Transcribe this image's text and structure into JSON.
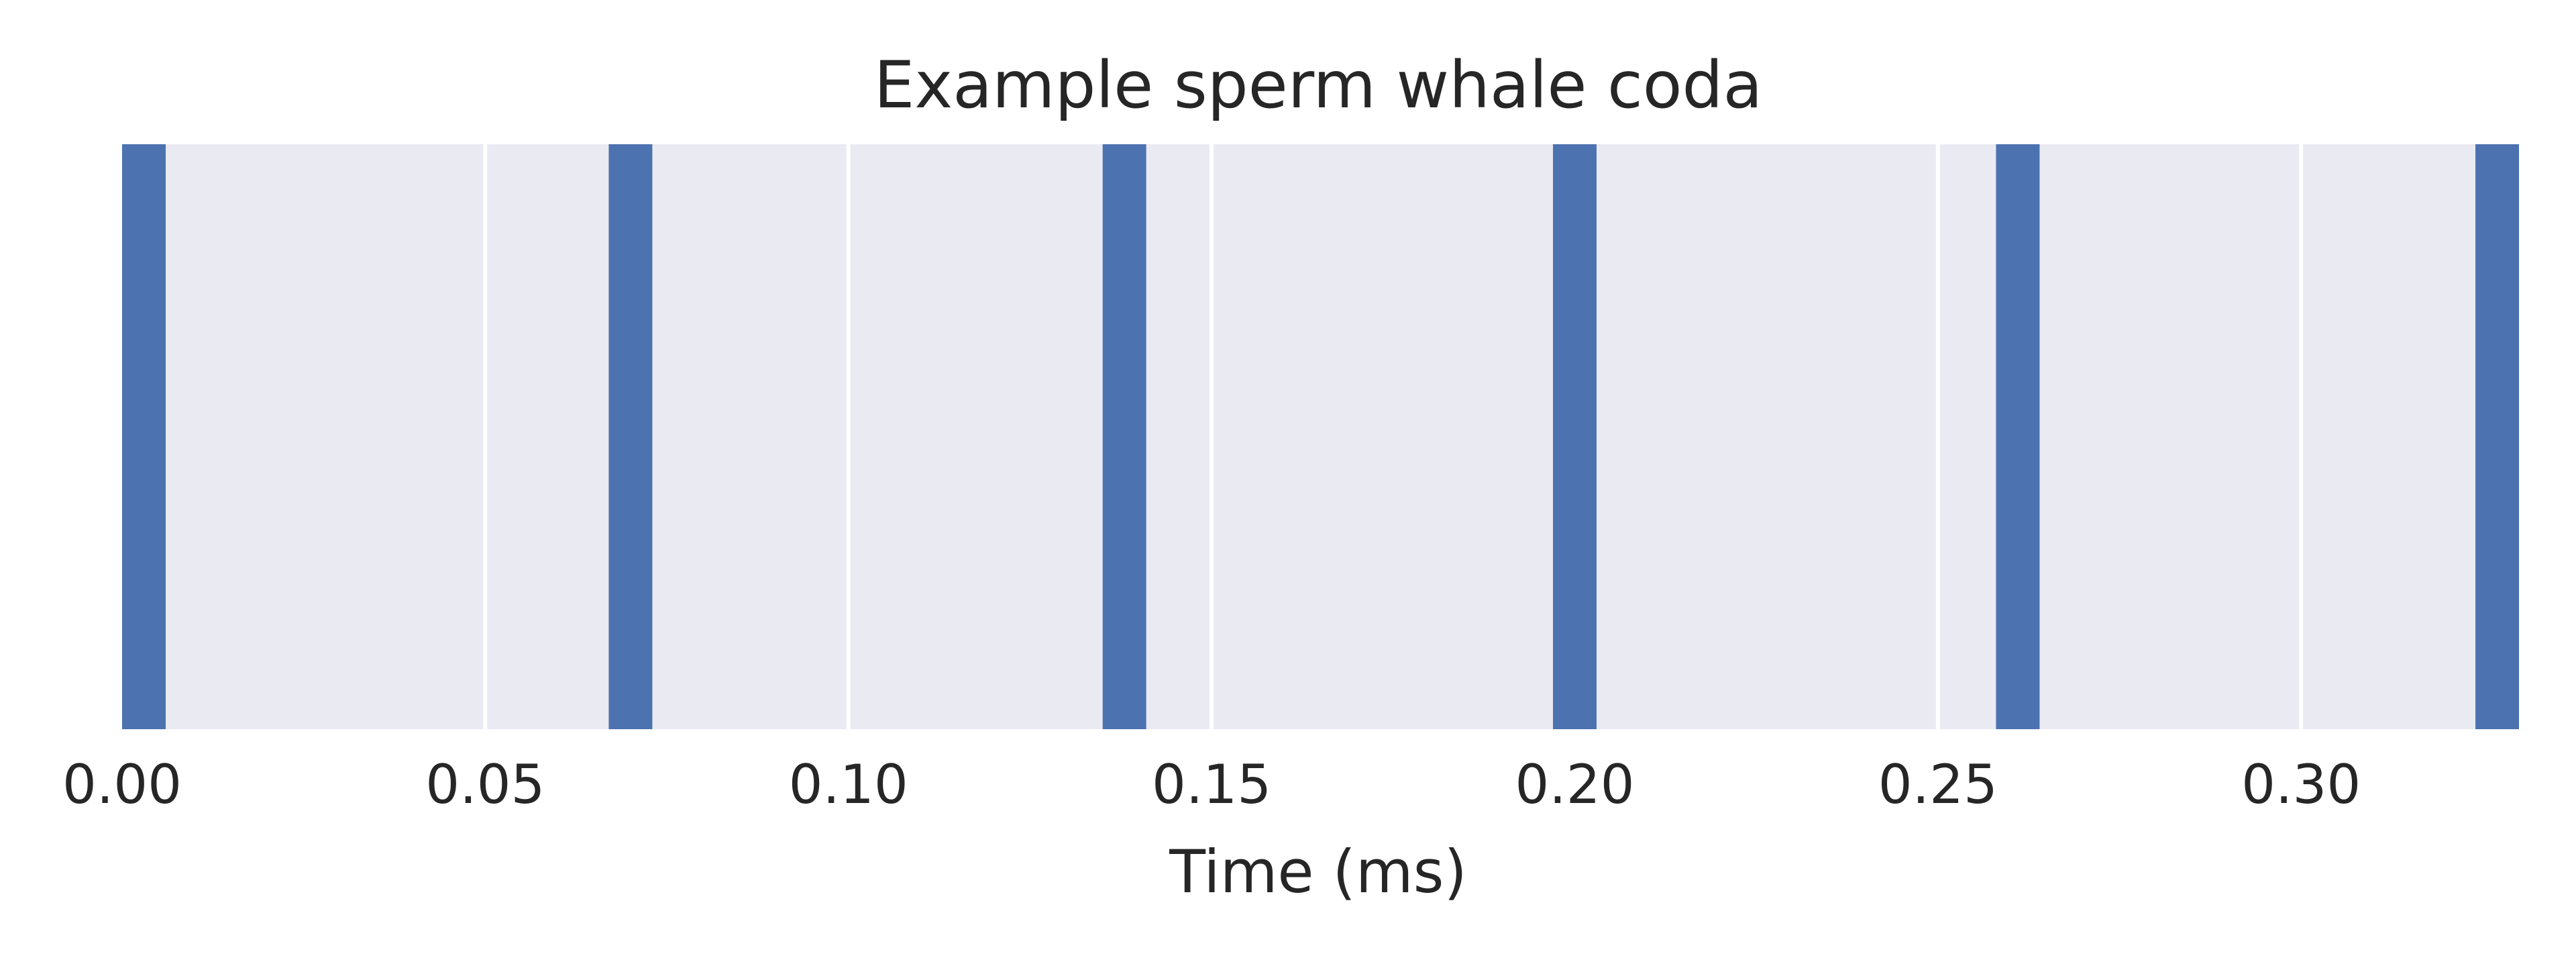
{
  "chart_data": {
    "type": "bar",
    "title": "Example sperm whale coda",
    "xlabel": "Time (ms)",
    "ylabel": "",
    "xlim": [
      0.0,
      0.33
    ],
    "x_ticks": [
      "0.00",
      "0.05",
      "0.10",
      "0.15",
      "0.20",
      "0.25",
      "0.30"
    ],
    "x_tick_values": [
      0.0,
      0.05,
      0.1,
      0.15,
      0.2,
      0.25,
      0.3
    ],
    "clicks": [
      0.0,
      0.067,
      0.135,
      0.197,
      0.258,
      0.324
    ],
    "click_width": 0.006,
    "grid": true,
    "legend": "none",
    "colors": {
      "click": "#4c72b0",
      "background": "#eaeaf2",
      "grid": "#ffffff"
    }
  }
}
